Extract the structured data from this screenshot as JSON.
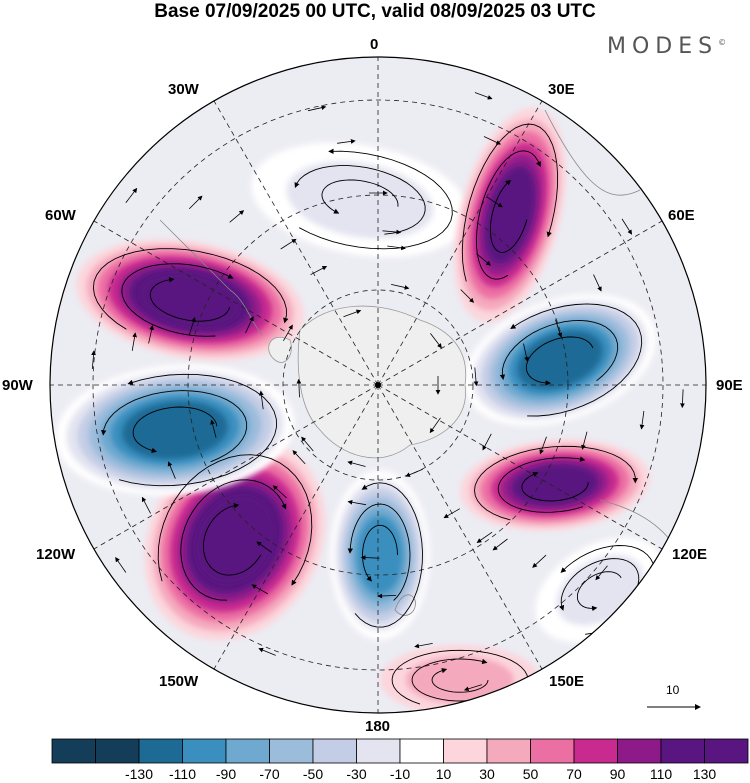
{
  "header": {
    "title": "Base 07/09/2025 00 UTC, valid 08/09/2025 03 UTC",
    "brand": "MODES",
    "brand_mark": "©"
  },
  "map": {
    "projection": "south-polar-stereographic",
    "longitude_labels": {
      "l0": "0",
      "l30e": "30E",
      "l60e": "60E",
      "l90e": "90E",
      "l120e": "120E",
      "l150e": "150E",
      "l180": "180",
      "l150w": "150W",
      "l120w": "120W",
      "l90w": "90W",
      "l60w": "60W",
      "l30w": "30W"
    },
    "anomaly_centers": [
      {
        "name": "atlantic-low",
        "sign": "negative",
        "level": -40
      },
      {
        "name": "africa-high",
        "sign": "positive",
        "level": 120
      },
      {
        "name": "indian-low",
        "sign": "negative",
        "level": -130
      },
      {
        "name": "south-indian-high",
        "sign": "positive",
        "level": 110
      },
      {
        "name": "southwest-pacific-low",
        "sign": "negative",
        "level": -40
      },
      {
        "name": "pacific-low",
        "sign": "negative",
        "level": -120
      },
      {
        "name": "amundsen-high",
        "sign": "positive",
        "level": 130
      },
      {
        "name": "bellingshausen-low",
        "sign": "negative",
        "level": -140
      },
      {
        "name": "drake-high",
        "sign": "positive",
        "level": 130
      },
      {
        "name": "ross-high",
        "sign": "positive",
        "level": 40
      }
    ]
  },
  "reference_vector": {
    "label": "10"
  },
  "colorbar": {
    "tick_labels": [
      "-130",
      "-110",
      "-90",
      "-70",
      "-50",
      "-30",
      "-10",
      "10",
      "30",
      "50",
      "70",
      "90",
      "110",
      "130"
    ],
    "colors": [
      "#143d59",
      "#1d6a95",
      "#3b8fbf",
      "#6fa9cf",
      "#9cbcdc",
      "#c3cde5",
      "#e4e4f1",
      "#ffffff",
      "#fcd6dc",
      "#f5a9bd",
      "#ec6fa3",
      "#c82a8f",
      "#8e1a8a",
      "#5a1680"
    ]
  }
}
